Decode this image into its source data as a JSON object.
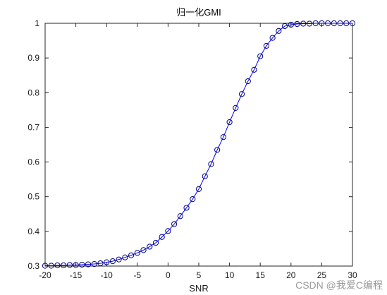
{
  "chart_data": {
    "type": "line",
    "title": "归一化GMI",
    "xlabel": "SNR",
    "ylabel": "",
    "xlim": [
      -20,
      30
    ],
    "ylim": [
      0.3,
      1.0
    ],
    "grid": false,
    "x_ticks": [
      "-20",
      "-15",
      "-10",
      "-5",
      "0",
      "5",
      "10",
      "15",
      "20",
      "25",
      "30"
    ],
    "y_ticks": [
      "0.3",
      "0.4",
      "0.5",
      "0.6",
      "0.7",
      "0.8",
      "0.9",
      "1"
    ],
    "line_color": "#0000ff",
    "marker": "circle",
    "marker_color": "#000080",
    "series": [
      {
        "x": [
          -20,
          -19,
          -18,
          -17,
          -16,
          -15,
          -14,
          -13,
          -12,
          -11,
          -10,
          -9,
          -8,
          -7,
          -6,
          -5,
          -4,
          -3,
          -2,
          -1,
          0,
          1,
          2,
          3,
          4,
          5,
          6,
          7,
          8,
          9,
          10,
          11,
          12,
          13,
          14,
          15,
          16,
          17,
          18,
          19,
          20,
          21,
          22,
          23,
          24,
          25,
          26,
          27,
          28,
          29,
          30
        ],
        "y": [
          0.301,
          0.301,
          0.302,
          0.302,
          0.303,
          0.303,
          0.304,
          0.305,
          0.306,
          0.308,
          0.311,
          0.314,
          0.319,
          0.325,
          0.331,
          0.338,
          0.346,
          0.356,
          0.367,
          0.384,
          0.401,
          0.421,
          0.444,
          0.468,
          0.493,
          0.522,
          0.559,
          0.594,
          0.635,
          0.672,
          0.715,
          0.756,
          0.796,
          0.833,
          0.866,
          0.905,
          0.935,
          0.958,
          0.978,
          0.992,
          0.996,
          0.998,
          0.999,
          0.999,
          1.0,
          1.0,
          1.0,
          1.0,
          1.0,
          1.0,
          1.0
        ]
      }
    ]
  },
  "watermark": "CSDN @我爱C编程"
}
